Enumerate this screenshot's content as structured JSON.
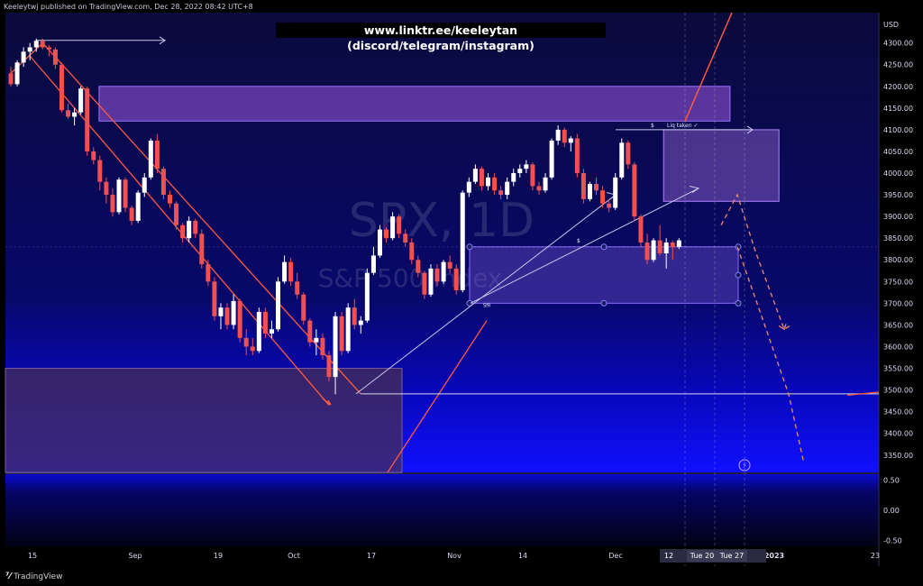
{
  "header": {
    "publisher": "Keeleytwj published on TradingView.com, Dec 28, 2022 08:42 UTC+8",
    "banner": "www.linktr.ee/keeleytan (discord/telegram/instagram)"
  },
  "watermark": {
    "symbol": "SPX, 1D",
    "name": "S&P 500 Index"
  },
  "footer": {
    "brand": "TradingView",
    "logo_icon": "tradingview-logo-icon"
  },
  "colors": {
    "bg_top": "#0a0a36",
    "bg_mid": "#0b0bb8",
    "bg_bottom": "#020214",
    "up_candle": "#ffffff",
    "down_candle": "#f05050",
    "trend_line": "#ff5a3c",
    "ghost_projection": "#f08a6a",
    "zone_fill": "#7a5ad8",
    "support_zone": "#3a2a50",
    "axis_text": "#dcdcf0",
    "white_line": "#d8d8ee"
  },
  "annotations": {
    "liq_taken": "Liq taken ✓",
    "dollar": "$",
    "sfp": "SfR"
  },
  "chart_data": {
    "type": "candlestick",
    "symbol": "SPX",
    "timeframe": "1D",
    "currency": "USD",
    "ylim": [
      3310,
      4370
    ],
    "yticks": [
      3350,
      3400,
      3450,
      3500,
      3550,
      3600,
      3650,
      3700,
      3750,
      3800,
      3850,
      3900,
      3950,
      4000,
      4050,
      4100,
      4150,
      4200,
      4250,
      4300
    ],
    "xticks": [
      "15",
      "Sep",
      "19",
      "Oct",
      "17",
      "Nov",
      "14",
      "Dec",
      "2023",
      "23"
    ],
    "cursor_labels": [
      "Tue 20",
      "Tue 27"
    ],
    "grid": false,
    "ohlc": [
      [
        4230,
        4245,
        4200,
        4205
      ],
      [
        4205,
        4260,
        4200,
        4255
      ],
      [
        4255,
        4290,
        4245,
        4280
      ],
      [
        4280,
        4300,
        4260,
        4290
      ],
      [
        4290,
        4310,
        4280,
        4305
      ],
      [
        4305,
        4310,
        4285,
        4290
      ],
      [
        4290,
        4295,
        4270,
        4285
      ],
      [
        4285,
        4290,
        4240,
        4250
      ],
      [
        4250,
        4255,
        4140,
        4145
      ],
      [
        4145,
        4160,
        4125,
        4130
      ],
      [
        4130,
        4150,
        4110,
        4140
      ],
      [
        4140,
        4200,
        4135,
        4195
      ],
      [
        4195,
        4200,
        4040,
        4050
      ],
      [
        4050,
        4060,
        4020,
        4030
      ],
      [
        4030,
        4040,
        3960,
        3980
      ],
      [
        3980,
        3990,
        3930,
        3950
      ],
      [
        3950,
        3965,
        3900,
        3910
      ],
      [
        3910,
        3990,
        3905,
        3985
      ],
      [
        3985,
        3990,
        3910,
        3920
      ],
      [
        3920,
        3925,
        3880,
        3890
      ],
      [
        3890,
        3960,
        3885,
        3955
      ],
      [
        3955,
        4000,
        3945,
        3990
      ],
      [
        3990,
        4080,
        3985,
        4075
      ],
      [
        4075,
        4090,
        4000,
        4010
      ],
      [
        4010,
        4015,
        3940,
        3950
      ],
      [
        3950,
        3960,
        3920,
        3930
      ],
      [
        3930,
        3935,
        3870,
        3880
      ],
      [
        3880,
        3885,
        3840,
        3850
      ],
      [
        3850,
        3900,
        3840,
        3890
      ],
      [
        3890,
        3895,
        3850,
        3860
      ],
      [
        3860,
        3870,
        3780,
        3790
      ],
      [
        3790,
        3800,
        3740,
        3750
      ],
      [
        3750,
        3760,
        3660,
        3670
      ],
      [
        3670,
        3700,
        3640,
        3690
      ],
      [
        3690,
        3700,
        3640,
        3650
      ],
      [
        3650,
        3720,
        3640,
        3705
      ],
      [
        3705,
        3710,
        3610,
        3620
      ],
      [
        3620,
        3640,
        3580,
        3600
      ],
      [
        3600,
        3620,
        3580,
        3590
      ],
      [
        3590,
        3690,
        3585,
        3680
      ],
      [
        3680,
        3690,
        3620,
        3630
      ],
      [
        3630,
        3660,
        3620,
        3640
      ],
      [
        3640,
        3760,
        3635,
        3750
      ],
      [
        3750,
        3810,
        3745,
        3795
      ],
      [
        3795,
        3805,
        3740,
        3750
      ],
      [
        3750,
        3770,
        3710,
        3720
      ],
      [
        3720,
        3725,
        3650,
        3660
      ],
      [
        3660,
        3665,
        3600,
        3610
      ],
      [
        3610,
        3640,
        3580,
        3620
      ],
      [
        3620,
        3630,
        3570,
        3580
      ],
      [
        3580,
        3590,
        3520,
        3530
      ],
      [
        3530,
        3680,
        3490,
        3670
      ],
      [
        3670,
        3680,
        3580,
        3590
      ],
      [
        3590,
        3700,
        3585,
        3690
      ],
      [
        3690,
        3710,
        3640,
        3650
      ],
      [
        3650,
        3670,
        3630,
        3660
      ],
      [
        3660,
        3780,
        3655,
        3770
      ],
      [
        3770,
        3830,
        3765,
        3810
      ],
      [
        3810,
        3880,
        3805,
        3870
      ],
      [
        3870,
        3875,
        3840,
        3850
      ],
      [
        3850,
        3910,
        3845,
        3900
      ],
      [
        3900,
        3905,
        3850,
        3860
      ],
      [
        3860,
        3870,
        3830,
        3840
      ],
      [
        3840,
        3850,
        3790,
        3800
      ],
      [
        3800,
        3810,
        3760,
        3770
      ],
      [
        3770,
        3775,
        3710,
        3720
      ],
      [
        3720,
        3790,
        3715,
        3780
      ],
      [
        3780,
        3790,
        3740,
        3750
      ],
      [
        3750,
        3800,
        3745,
        3795
      ],
      [
        3795,
        3810,
        3770,
        3780
      ],
      [
        3780,
        3790,
        3720,
        3730
      ],
      [
        3730,
        3960,
        3725,
        3955
      ],
      [
        3955,
        3990,
        3945,
        3980
      ],
      [
        3980,
        4020,
        3975,
        4010
      ],
      [
        4010,
        4015,
        3960,
        3970
      ],
      [
        3970,
        4000,
        3960,
        3990
      ],
      [
        3990,
        4000,
        3950,
        3960
      ],
      [
        3960,
        3970,
        3940,
        3950
      ],
      [
        3950,
        3990,
        3940,
        3980
      ],
      [
        3980,
        4010,
        3970,
        4000
      ],
      [
        4000,
        4020,
        3990,
        4010
      ],
      [
        4010,
        4030,
        4000,
        4020
      ],
      [
        4020,
        4025,
        3960,
        3970
      ],
      [
        3970,
        3980,
        3950,
        3960
      ],
      [
        3960,
        4000,
        3955,
        3990
      ],
      [
        3990,
        4080,
        3985,
        4075
      ],
      [
        4075,
        4110,
        4065,
        4100
      ],
      [
        4100,
        4105,
        4060,
        4070
      ],
      [
        4070,
        4085,
        4050,
        4080
      ],
      [
        4080,
        4090,
        3990,
        4000
      ],
      [
        4000,
        4010,
        3930,
        3940
      ],
      [
        3940,
        3980,
        3935,
        3975
      ],
      [
        3975,
        3990,
        3950,
        3960
      ],
      [
        3960,
        3970,
        3920,
        3930
      ],
      [
        3930,
        3940,
        3910,
        3920
      ],
      [
        3920,
        4000,
        3915,
        3990
      ],
      [
        3990,
        4080,
        3985,
        4070
      ],
      [
        4070,
        4075,
        4010,
        4020
      ],
      [
        4020,
        4025,
        3890,
        3900
      ],
      [
        3900,
        3905,
        3830,
        3840
      ],
      [
        3840,
        3860,
        3790,
        3800
      ],
      [
        3800,
        3850,
        3795,
        3845
      ],
      [
        3845,
        3880,
        3810,
        3815
      ],
      [
        3815,
        3850,
        3780,
        3840
      ],
      [
        3840,
        3845,
        3800,
        3830
      ],
      [
        3830,
        3850,
        3825,
        3845
      ]
    ],
    "zones": [
      {
        "name": "upper-supply-zone",
        "from": 4120,
        "to": 4200
      },
      {
        "name": "dec-supply-zone",
        "from": 3935,
        "to": 4100
      },
      {
        "name": "mid-demand-zone",
        "from": 3700,
        "to": 3830
      },
      {
        "name": "low-demand-zone",
        "from": 3310,
        "to": 3550
      }
    ],
    "levels": [
      {
        "name": "october-low-line",
        "value": 3491
      }
    ],
    "oscillator": {
      "ylim": [
        -0.6,
        0.6
      ],
      "yticks": [
        0.5,
        0.0,
        -0.5
      ]
    }
  }
}
